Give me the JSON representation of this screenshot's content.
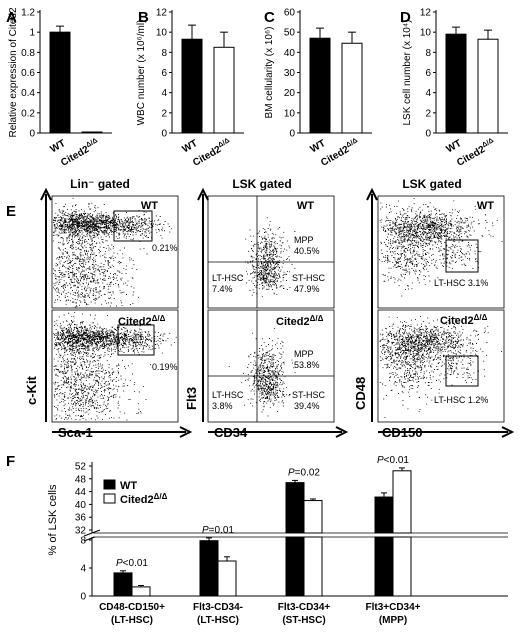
{
  "panels": {
    "A": "A",
    "B": "B",
    "C": "C",
    "D": "D",
    "E": "E",
    "F": "F"
  },
  "genotypes": {
    "wt": "WT",
    "ko_base": "Cited2",
    "ko_sup": "Δ/Δ"
  },
  "colors": {
    "wt_bar": "#000000",
    "ko_bar": "#ffffff",
    "axis": "#000000",
    "dot": "#000000"
  },
  "flow": {
    "gate_titles": {
      "lin": "Lin⁻ gated",
      "lsk1": "LSK gated",
      "lsk2": "LSK gated"
    },
    "axes": {
      "col1": {
        "x": "Sca-1",
        "y": "c-Kit"
      },
      "col2": {
        "x": "CD34",
        "y": "Flt3"
      },
      "col3": {
        "x": "CD150",
        "y": "CD48"
      }
    },
    "plots": {
      "c1_wt": {
        "pct": "0.21%"
      },
      "c1_ko": {
        "pct": "0.19%"
      },
      "c2_wt": {
        "mpp": "MPP",
        "mpp_pct": "40.5%",
        "lt": "LT-HSC",
        "lt_pct": "7.4%",
        "st": "ST-HSC",
        "st_pct": "47.9%"
      },
      "c2_ko": {
        "mpp": "MPP",
        "mpp_pct": "53.8%",
        "lt": "LT-HSC",
        "lt_pct": "3.8%",
        "st": "ST-HSC",
        "st_pct": "39.4%"
      },
      "c3_wt": {
        "lt": "LT-HSC  3.1%"
      },
      "c3_ko": {
        "lt": "LT-HSC  1.2%"
      }
    }
  },
  "chart_data": [
    {
      "panel": "A",
      "type": "bar",
      "ylabel": "Relative expression of Cited2",
      "ylim": [
        0,
        1.2
      ],
      "yticks": [
        "0",
        "0.2",
        "0.4",
        "0.6",
        "0.8",
        "1",
        "1.2"
      ],
      "categories": [
        "WT",
        "Cited2 Δ/Δ"
      ],
      "values": [
        1.0,
        0.01
      ],
      "errors": [
        0.06,
        0
      ]
    },
    {
      "panel": "B",
      "type": "bar",
      "ylabel": "WBC number (x 10⁶/ml)",
      "ylim": [
        0,
        12
      ],
      "yticks": [
        "0",
        "2",
        "4",
        "6",
        "8",
        "10",
        "12"
      ],
      "categories": [
        "WT",
        "Cited2 Δ/Δ"
      ],
      "values": [
        9.3,
        8.5
      ],
      "errors": [
        1.4,
        1.5
      ]
    },
    {
      "panel": "C",
      "type": "bar",
      "ylabel": "BM cellularity (x 10⁶)",
      "ylim": [
        0,
        60
      ],
      "yticks": [
        "0",
        "10",
        "20",
        "30",
        "40",
        "50",
        "60"
      ],
      "categories": [
        "WT",
        "Cited2 Δ/Δ"
      ],
      "values": [
        47,
        44.5
      ],
      "errors": [
        5,
        5.5
      ]
    },
    {
      "panel": "D",
      "type": "bar",
      "ylabel": "LSK cell number (x 10⁴)",
      "ylim": [
        0,
        12
      ],
      "yticks": [
        "0",
        "2",
        "4",
        "6",
        "8",
        "10",
        "12"
      ],
      "categories": [
        "WT",
        "Cited2 Δ/Δ"
      ],
      "values": [
        9.8,
        9.3
      ],
      "errors": [
        0.7,
        0.9
      ]
    },
    {
      "panel": "F",
      "type": "bar",
      "ylabel": "% of LSK cells",
      "yticks_lower": [
        "0",
        "4",
        "8"
      ],
      "yticks_upper": [
        "32",
        "36",
        "40",
        "44",
        "48",
        "52"
      ],
      "legend": [
        "WT",
        "Cited2 Δ/Δ"
      ],
      "categories": [
        "CD48-CD150+ (LT-HSC)",
        "Flt3-CD34- (LT-HSC)",
        "Flt3-CD34+ (ST-HSC)",
        "Flt3+CD34+ (MPP)"
      ],
      "category_lines": [
        [
          "CD48-CD150+",
          "(LT-HSC)"
        ],
        [
          "Flt3-CD34-",
          "(LT-HSC)"
        ],
        [
          "Flt3-CD34+",
          "(ST-HSC)"
        ],
        [
          "Flt3+CD34+",
          "(MPP)"
        ]
      ],
      "series": [
        {
          "name": "WT",
          "values": [
            3.3,
            7.9,
            46.8,
            42.3
          ],
          "errors": [
            0.3,
            0.4,
            0.7,
            1.3
          ]
        },
        {
          "name": "Cited2 Δ/Δ",
          "values": [
            1.3,
            5.0,
            41.2,
            50.5
          ],
          "errors": [
            0.2,
            0.6,
            0.5,
            0.9
          ]
        }
      ],
      "pvalues": [
        "P<0.01",
        "P=0.01",
        "P=0.02",
        "P<0.01"
      ]
    }
  ]
}
